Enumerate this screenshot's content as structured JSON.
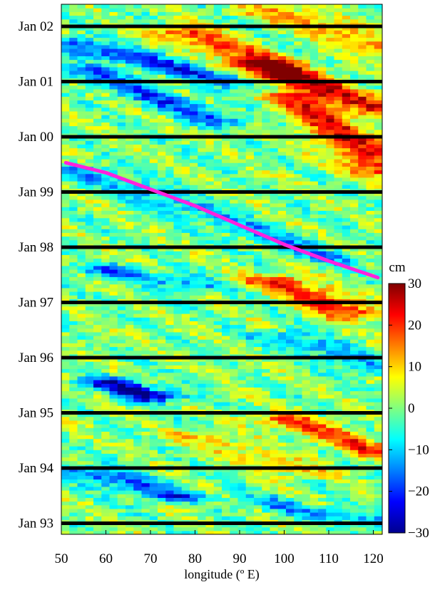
{
  "chart_data": {
    "type": "heatmap",
    "xlabel": "longitude (º E)",
    "ylabel": "",
    "x_ticks": [
      50,
      60,
      70,
      80,
      90,
      100,
      110,
      120
    ],
    "xlim": [
      50,
      122
    ],
    "y_ticks": [
      "Jan 93",
      "Jan 94",
      "Jan 95",
      "Jan 96",
      "Jan 97",
      "Jan 98",
      "Jan 99",
      "Jan 00",
      "Jan 01",
      "Jan 02"
    ],
    "ylim_years": [
      1992.8,
      2002.4
    ],
    "year_lines": [
      1993,
      1994,
      1995,
      1996,
      1997,
      1998,
      1999,
      2000,
      2001,
      2002
    ],
    "colorbar": {
      "unit": "cm",
      "ticks": [
        30,
        20,
        10,
        0,
        -10,
        -20,
        -30
      ],
      "range": [
        -30,
        30
      ],
      "colormap": "jet"
    },
    "trajectory": {
      "color": "#ff22dd",
      "points": [
        [
          51,
          1999.53
        ],
        [
          60,
          1999.35
        ],
        [
          70,
          1999.05
        ],
        [
          80,
          1998.75
        ],
        [
          90,
          1998.4
        ],
        [
          100,
          1998.05
        ],
        [
          110,
          1997.75
        ],
        [
          121,
          1997.45
        ]
      ]
    },
    "features": [
      {
        "x0": 51,
        "y0": 2001.7,
        "x1": 96,
        "y1": 2000.9,
        "value": -20
      },
      {
        "x0": 56,
        "y0": 2001.2,
        "x1": 85,
        "y1": 2000.3,
        "value": -16
      },
      {
        "x0": 78,
        "y0": 2001.9,
        "x1": 122,
        "y1": 2000.5,
        "value": 20
      },
      {
        "x0": 95,
        "y0": 2001.3,
        "x1": 122,
        "y1": 1999.4,
        "value": 22
      },
      {
        "x0": 98,
        "y0": 2002.3,
        "x1": 122,
        "y1": 2001.6,
        "value": 14
      },
      {
        "x0": 55,
        "y0": 1999.4,
        "x1": 110,
        "y1": 1997.8,
        "value": -12
      },
      {
        "x0": 60,
        "y0": 1997.6,
        "x1": 80,
        "y1": 1997.3,
        "value": -14
      },
      {
        "x0": 98,
        "y0": 1997.4,
        "x1": 116,
        "y1": 1996.8,
        "value": 22
      },
      {
        "x0": 100,
        "y0": 1996.4,
        "x1": 121,
        "y1": 1995.8,
        "value": -12
      },
      {
        "x0": 61,
        "y0": 1995.55,
        "x1": 70,
        "y1": 1995.3,
        "value": -26
      },
      {
        "x0": 100,
        "y0": 1994.9,
        "x1": 121,
        "y1": 1994.3,
        "value": 18
      },
      {
        "x0": 55,
        "y0": 1993.95,
        "x1": 75,
        "y1": 1993.5,
        "value": -18
      },
      {
        "x0": 80,
        "y0": 1994.6,
        "x1": 105,
        "y1": 1993.9,
        "value": 10
      },
      {
        "x0": 95,
        "y0": 1993.4,
        "x1": 121,
        "y1": 1993.0,
        "value": -12
      }
    ]
  }
}
